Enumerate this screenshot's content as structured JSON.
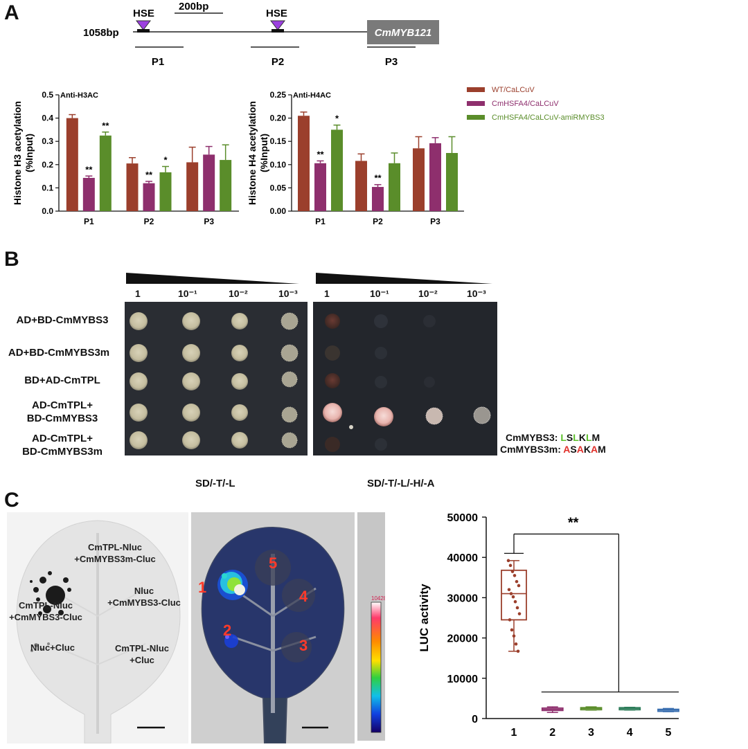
{
  "panels": {
    "a": "A",
    "b": "B",
    "c": "C"
  },
  "promoter": {
    "length_label": "1058bp",
    "scale_label": "200bp",
    "hse_labels": [
      "HSE",
      "HSE"
    ],
    "gene_label": "CmMYB121",
    "region_labels": [
      "P1",
      "P2",
      "P3"
    ]
  },
  "chart_data": [
    {
      "type": "bar",
      "title": "Anti-H3AC",
      "ylabel": "Histone H3 acetylation (%Input)",
      "ylabel_lines": [
        "Histone H3 acetylation",
        "(%Input)"
      ],
      "ylim": [
        0,
        0.5
      ],
      "yticks": [
        "0.0",
        "0.1",
        "0.2",
        "0.3",
        "0.4",
        "0.5"
      ],
      "categories": [
        "P1",
        "P2",
        "P3"
      ],
      "series": [
        {
          "name": "WT/CaLCuV",
          "color": "#9b3f2c",
          "values": [
            0.4,
            0.205,
            0.21
          ],
          "errors": [
            0.015,
            0.025,
            0.065
          ]
        },
        {
          "name": "CmHSFA4/CaLCuV",
          "color": "#8e2f6d",
          "values": [
            0.143,
            0.12,
            0.243
          ],
          "errors": [
            0.008,
            0.008,
            0.035
          ]
        },
        {
          "name": "CmHSFA4/CaLCuV-amiRMYBS3",
          "color": "#5a8d2a",
          "values": [
            0.325,
            0.167,
            0.22
          ],
          "errors": [
            0.015,
            0.025,
            0.065
          ]
        }
      ],
      "annotations": [
        [
          "**",
          "**"
        ],
        [
          "**",
          "*"
        ],
        [
          "",
          ""
        ]
      ]
    },
    {
      "type": "bar",
      "title": "Anti-H4AC",
      "ylabel": "Histone H4 acetylation (%Input)",
      "ylabel_lines": [
        "Histone H4 acetylation",
        "(%Input)"
      ],
      "ylim": [
        0,
        0.25
      ],
      "yticks": [
        "0.00",
        "0.05",
        "0.10",
        "0.15",
        "0.20",
        "0.25"
      ],
      "categories": [
        "P1",
        "P2",
        "P3"
      ],
      "series": [
        {
          "name": "WT/CaLCuV",
          "color": "#9b3f2c",
          "values": [
            0.205,
            0.108,
            0.135
          ],
          "errors": [
            0.008,
            0.015,
            0.025
          ]
        },
        {
          "name": "CmHSFA4/CaLCuV",
          "color": "#8e2f6d",
          "values": [
            0.103,
            0.052,
            0.146
          ],
          "errors": [
            0.005,
            0.005,
            0.012
          ]
        },
        {
          "name": "CmHSFA4/CaLCuV-amiRMYBS3",
          "color": "#5a8d2a",
          "values": [
            0.175,
            0.103,
            0.125
          ],
          "errors": [
            0.01,
            0.022,
            0.035
          ]
        }
      ],
      "annotations": [
        [
          "**",
          "*"
        ],
        [
          "**",
          ""
        ],
        [
          "",
          ""
        ]
      ]
    },
    {
      "type": "box",
      "ylabel": "LUC activity",
      "ylim": [
        0,
        50000
      ],
      "yticks": [
        "0",
        "10000",
        "20000",
        "30000",
        "40000",
        "50000"
      ],
      "categories": [
        "1",
        "2",
        "3",
        "4",
        "5"
      ],
      "colors": [
        "#9b3f2c",
        "#8e2f6d",
        "#5a8d2a",
        "#2e7d5a",
        "#3a6fb0"
      ],
      "boxes": [
        {
          "min": 16700,
          "q1": 24500,
          "median": 31000,
          "q3": 36800,
          "max": 39200
        },
        {
          "min": 1500,
          "q1": 2000,
          "median": 2300,
          "q3": 2600,
          "max": 2900
        },
        {
          "min": 2100,
          "q1": 2300,
          "median": 2500,
          "q3": 2700,
          "max": 2900
        },
        {
          "min": 2100,
          "q1": 2300,
          "median": 2500,
          "q3": 2700,
          "max": 2800
        },
        {
          "min": 1700,
          "q1": 1900,
          "median": 2100,
          "q3": 2300,
          "max": 2500
        }
      ],
      "points1": [
        39200,
        38000,
        36500,
        35500,
        34000,
        33000,
        32000,
        31000,
        30200,
        29000,
        27500,
        26000,
        24500,
        22000,
        20500,
        18500,
        16700
      ],
      "significance": "**"
    }
  ],
  "legend": [
    {
      "label": "WT/CaLCuV",
      "color": "#9b3f2c"
    },
    {
      "label": "CmHSFA4/CaLCuV",
      "color": "#8e2f6d"
    },
    {
      "label": "CmHSFA4/CaLCuV-amiRMYBS3",
      "color": "#5a8d2a"
    }
  ],
  "y2h": {
    "dilutions": [
      "1",
      "10⁻¹",
      "10⁻²",
      "10⁻³"
    ],
    "rows": [
      [
        "AD+BD-CmMYBS3"
      ],
      [
        "AD+BD-CmMYBS3m"
      ],
      [
        "BD+AD-CmTPL"
      ],
      [
        "AD-CmTPL+",
        "BD-CmMYBS3"
      ],
      [
        "AD-CmTPL+",
        "BD-CmMYBS3m"
      ]
    ],
    "media": [
      "SD/-T/-L",
      "SD/-T/-L/-H/-A"
    ],
    "motif_wt_label": "CmMYBS3:",
    "motif_wt": [
      {
        "c": "L",
        "color": "#5bbf2a"
      },
      {
        "c": "S",
        "color": "#111111"
      },
      {
        "c": "L",
        "color": "#5bbf2a"
      },
      {
        "c": "K",
        "color": "#111111"
      },
      {
        "c": "L",
        "color": "#5bbf2a"
      },
      {
        "c": "M",
        "color": "#111111"
      }
    ],
    "motif_mut_label": "CmMYBS3m:",
    "motif_mut": [
      {
        "c": "A",
        "color": "#e0302a"
      },
      {
        "c": "S",
        "color": "#111111"
      },
      {
        "c": "A",
        "color": "#e0302a"
      },
      {
        "c": "K",
        "color": "#111111"
      },
      {
        "c": "A",
        "color": "#e0302a"
      },
      {
        "c": "M",
        "color": "#111111"
      }
    ]
  },
  "leaf": {
    "labels": [
      [
        "CmTPL-Nluc",
        "+CmMYBS3m-Cluc"
      ],
      [
        "Nluc",
        "+CmMYBS3-Cluc"
      ],
      [
        "CmTPL-Nluc",
        "+CmMYBS3-Cluc"
      ],
      [
        "Nluc+Cluc"
      ],
      [
        "CmTPL-Nluc",
        "+Cluc"
      ]
    ],
    "spot_numbers": [
      "1",
      "2",
      "3",
      "4",
      "5"
    ],
    "colorbar_max": "10428"
  }
}
